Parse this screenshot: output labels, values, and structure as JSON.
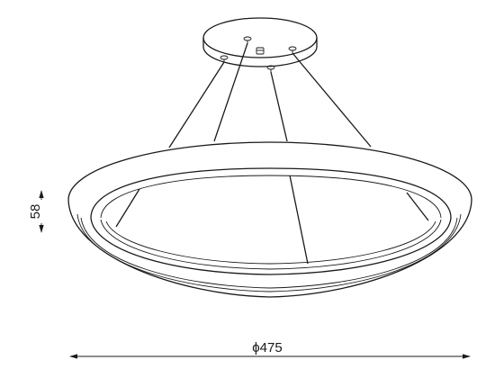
{
  "dimensions": {
    "height_label": "58",
    "diameter_label": "ϕ475"
  },
  "colors": {
    "line": "#1a1a1a",
    "background": "#ffffff"
  }
}
